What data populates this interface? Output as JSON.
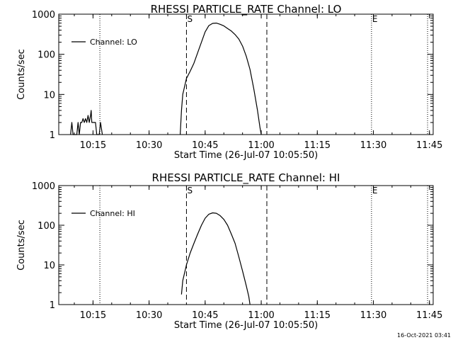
{
  "chart_data": [
    {
      "type": "line",
      "title": "RHESSI PARTICLE_RATE Channel: LO",
      "xlabel": "Start Time (26-Jul-07 10:05:50)",
      "ylabel": "Counts/sec",
      "y_scale": "log",
      "xlim": [
        "10:05:50",
        "11:46:00"
      ],
      "ylim": [
        1,
        1000
      ],
      "x_ticks": [
        "10:15",
        "10:30",
        "10:45",
        "11:00",
        "11:15",
        "11:30",
        "11:45"
      ],
      "y_ticks": [
        "1",
        "10",
        "100",
        "1000"
      ],
      "legend": {
        "position": "top-left",
        "entries": [
          "Channel: LO"
        ]
      },
      "markers": [
        {
          "label": "S",
          "time": "10:40:00",
          "style": "dashed"
        },
        {
          "label": "",
          "time": "11:01:30",
          "style": "dashed"
        },
        {
          "label": "",
          "time": "10:16:50",
          "style": "dotted"
        },
        {
          "label": "E",
          "time": "11:29:30",
          "style": "dotted"
        },
        {
          "label": "",
          "time": "11:44:30",
          "style": "dotted"
        }
      ],
      "series": [
        {
          "segments": [
            [
              [
                "10:09:00",
                1
              ],
              [
                "10:09:20",
                2
              ],
              [
                "10:09:40",
                1
              ],
              [
                "10:10:40",
                1
              ],
              [
                "10:11:00",
                2
              ],
              [
                "10:11:20",
                1
              ],
              [
                "10:11:40",
                2
              ],
              [
                "10:12:00",
                2
              ],
              [
                "10:12:20",
                2.5
              ],
              [
                "10:12:40",
                2
              ],
              [
                "10:13:00",
                2.5
              ],
              [
                "10:13:20",
                2
              ],
              [
                "10:13:40",
                3
              ],
              [
                "10:14:00",
                2
              ],
              [
                "10:14:20",
                3
              ],
              [
                "10:14:30",
                4
              ],
              [
                "10:14:40",
                2
              ],
              [
                "10:15:00",
                2
              ],
              [
                "10:15:40",
                2
              ],
              [
                "10:16:00",
                1
              ],
              [
                "10:16:40",
                1
              ],
              [
                "10:17:00",
                2
              ],
              [
                "10:17:30",
                1
              ]
            ],
            [
              [
                "10:38:20",
                1
              ],
              [
                "10:38:40",
                4
              ],
              [
                "10:39:00",
                10
              ],
              [
                "10:40:00",
                25
              ],
              [
                "10:41:00",
                38
              ],
              [
                "10:42:00",
                60
              ],
              [
                "10:43:00",
                110
              ],
              [
                "10:44:00",
                200
              ],
              [
                "10:45:00",
                360
              ],
              [
                "10:46:00",
                520
              ],
              [
                "10:47:00",
                590
              ],
              [
                "10:48:00",
                600
              ],
              [
                "10:49:00",
                560
              ],
              [
                "10:50:00",
                510
              ],
              [
                "10:51:00",
                440
              ],
              [
                "10:52:00",
                380
              ],
              [
                "10:53:00",
                310
              ],
              [
                "10:54:00",
                240
              ],
              [
                "10:55:00",
                160
              ],
              [
                "10:56:00",
                90
              ],
              [
                "10:57:00",
                42
              ],
              [
                "10:58:00",
                14
              ],
              [
                "10:59:00",
                4
              ],
              [
                "10:59:40",
                1.5
              ],
              [
                "11:00:00",
                1
              ]
            ]
          ]
        }
      ]
    },
    {
      "type": "line",
      "title": "RHESSI PARTICLE_RATE Channel: HI",
      "xlabel": "Start Time (26-Jul-07 10:05:50)",
      "ylabel": "Counts/sec",
      "y_scale": "log",
      "xlim": [
        "10:05:50",
        "11:46:00"
      ],
      "ylim": [
        1,
        1000
      ],
      "x_ticks": [
        "10:15",
        "10:30",
        "10:45",
        "11:00",
        "11:15",
        "11:30",
        "11:45"
      ],
      "y_ticks": [
        "1",
        "10",
        "100",
        "1000"
      ],
      "legend": {
        "position": "top-left",
        "entries": [
          "Channel: HI"
        ]
      },
      "markers": [
        {
          "label": "S",
          "time": "10:40:00",
          "style": "dashed"
        },
        {
          "label": "",
          "time": "11:01:30",
          "style": "dashed"
        },
        {
          "label": "",
          "time": "10:16:50",
          "style": "dotted"
        },
        {
          "label": "E",
          "time": "11:29:30",
          "style": "dotted"
        },
        {
          "label": "",
          "time": "11:44:30",
          "style": "dotted"
        }
      ],
      "series": [
        {
          "segments": [
            [
              [
                "10:38:40",
                1.8
              ],
              [
                "10:39:00",
                4
              ],
              [
                "10:40:00",
                10
              ],
              [
                "10:41:00",
                20
              ],
              [
                "10:42:00",
                35
              ],
              [
                "10:43:00",
                60
              ],
              [
                "10:44:00",
                100
              ],
              [
                "10:45:00",
                150
              ],
              [
                "10:46:00",
                190
              ],
              [
                "10:47:00",
                205
              ],
              [
                "10:48:00",
                200
              ],
              [
                "10:49:00",
                175
              ],
              [
                "10:50:00",
                140
              ],
              [
                "10:51:00",
                100
              ],
              [
                "10:52:00",
                60
              ],
              [
                "10:53:00",
                35
              ],
              [
                "10:54:00",
                16
              ],
              [
                "10:55:00",
                7
              ],
              [
                "10:56:00",
                3
              ],
              [
                "10:56:40",
                1.6
              ],
              [
                "10:57:00",
                1
              ]
            ]
          ]
        }
      ]
    }
  ],
  "footer": {
    "timestamp": "16-Oct-2021 03:41"
  }
}
